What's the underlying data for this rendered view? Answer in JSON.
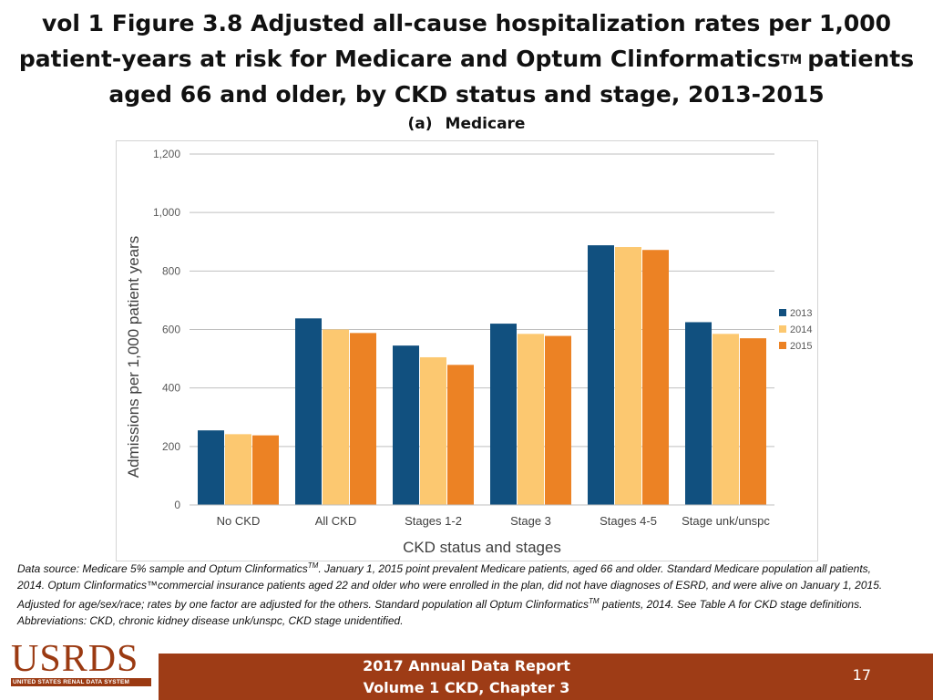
{
  "slide": {
    "title_main": "vol 1 Figure 3.8 Adjusted all-cause hospitalization rates per 1,000 patient-years at risk for Medicare and Optum Clinformatics",
    "title_tm": "TM",
    "title_rest": "patients aged 66 and older, by CKD status and stage, 2013-2015",
    "subtitle_label": "(a)",
    "subtitle_text": "Medicare",
    "page_number": "17"
  },
  "source_note": {
    "part1": "Data source: Medicare 5% sample and Optum Clinformatics",
    "tm1": "TM",
    "part2": ". January 1, 2015 point prevalent Medicare patients, aged 66 and older. Standard Medicare population all patients, 2014. Optum Clinformatics™commercial insurance patients aged 22 and older who were enrolled in the plan, did not have diagnoses of ESRD, and were alive on January 1, 2015. Adjusted for age/sex/race; rates by one factor are adjusted for the others. Standard population all Optum Clinformatics",
    "tm2": "TM",
    "part3": " patients, 2014. See Table A for CKD stage definitions. Abbreviations: CKD, chronic kidney disease unk/unspc, CKD stage unidentified."
  },
  "logo": {
    "text": "USRDS",
    "subtext": "UNITED STATES RENAL DATA SYSTEM"
  },
  "footer": {
    "line1": "2017 Annual Data Report",
    "line2": "Volume 1 CKD, Chapter 3"
  },
  "colors": {
    "brand": "#9e3c16",
    "series_2013": "#11507f",
    "series_2014": "#fcc870",
    "series_2015": "#ec8224",
    "gridline": "#bfbfbf"
  },
  "chart_data": {
    "type": "bar",
    "title": "",
    "xlabel": "CKD status and stages",
    "ylabel": "Admissions per 1,000 patient years",
    "ylim": [
      0,
      1200
    ],
    "yticks": [
      0,
      200,
      400,
      600,
      800,
      1000,
      1200
    ],
    "ytick_labels": [
      "0",
      "200",
      "400",
      "600",
      "800",
      "1,000",
      "1,200"
    ],
    "grid": true,
    "legend_position": "right",
    "categories": [
      "No CKD",
      "All CKD",
      "Stages 1-2",
      "Stage 3",
      "Stages 4-5",
      "Stage unk/unspc"
    ],
    "series": [
      {
        "name": "2013",
        "color": "#11507f",
        "values": [
          255,
          638,
          545,
          620,
          888,
          625
        ]
      },
      {
        "name": "2014",
        "color": "#fcc870",
        "values": [
          242,
          600,
          505,
          585,
          882,
          585
        ]
      },
      {
        "name": "2015",
        "color": "#ec8224",
        "values": [
          238,
          588,
          479,
          578,
          872,
          570
        ]
      }
    ]
  }
}
